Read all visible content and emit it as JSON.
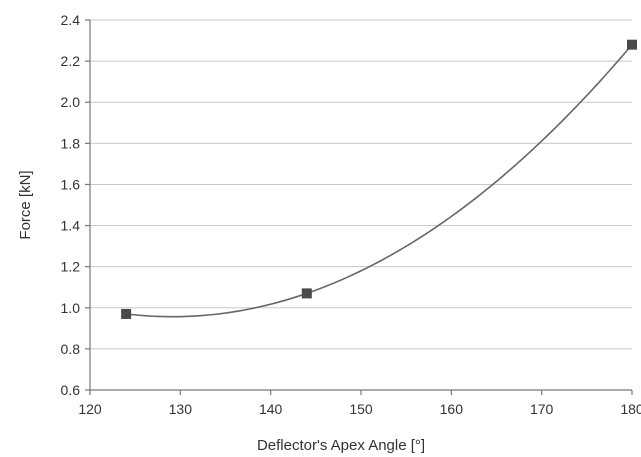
{
  "chart_data": {
    "type": "scatter",
    "xlabel": "Deflector's Apex Angle [°]",
    "ylabel": "Force [kN]",
    "xlim": [
      120,
      180
    ],
    "ylim": [
      0.6,
      2.4
    ],
    "xticks": [
      120,
      130,
      140,
      150,
      160,
      170,
      180
    ],
    "yticks": [
      0.6,
      0.8,
      1.0,
      1.2,
      1.4,
      1.6,
      1.8,
      2.0,
      2.2,
      2.4
    ],
    "xtick_labels": [
      "120",
      "130",
      "140",
      "150",
      "160",
      "170",
      "180"
    ],
    "ytick_labels": [
      "0.6",
      "0.8",
      "1.0",
      "1.2",
      "1.4",
      "1.6",
      "1.8",
      "2.0",
      "2.2",
      "2.4"
    ],
    "grid": true,
    "trendline": "polynomial-fit",
    "series": [
      {
        "points": [
          {
            "x": 124,
            "y": 0.97
          },
          {
            "x": 144,
            "y": 1.07
          },
          {
            "x": 180,
            "y": 2.28
          }
        ],
        "marker": "square",
        "marker_color": "#4a4a4a",
        "line_color": "#666666"
      }
    ]
  }
}
